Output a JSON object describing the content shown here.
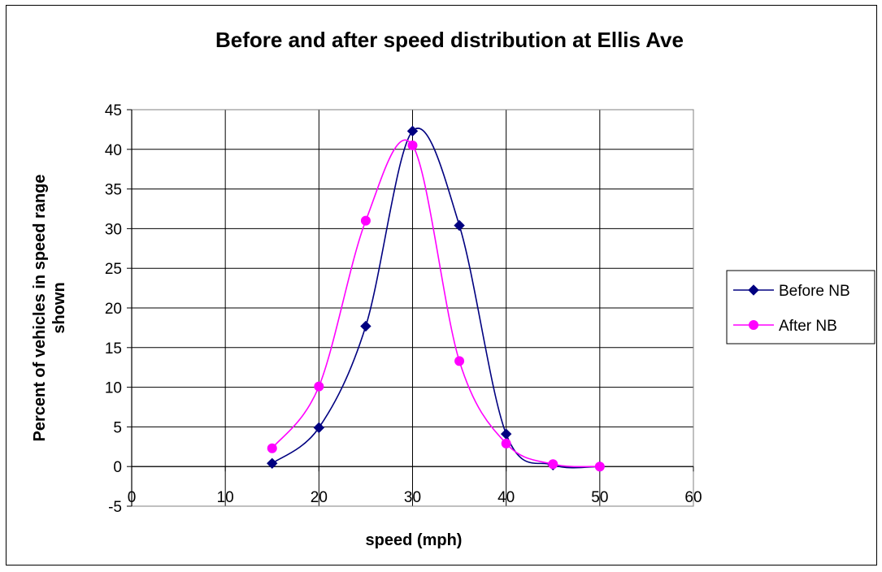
{
  "chart_data": {
    "type": "line",
    "title": "Before and after speed distribution at Ellis Ave",
    "xlabel": "speed (mph)",
    "ylabel_line1": "Percent of vehicles in speed range",
    "ylabel_line2": "shown",
    "xlim": [
      0,
      60
    ],
    "ylim": [
      -5,
      45
    ],
    "x_ticks": [
      0,
      10,
      20,
      30,
      40,
      50,
      60
    ],
    "y_ticks": [
      -5,
      0,
      5,
      10,
      15,
      20,
      25,
      30,
      35,
      40,
      45
    ],
    "grid": true,
    "legend_position": "right",
    "smoothed": true,
    "series": [
      {
        "name": "Before NB",
        "color": "#000080",
        "marker": "diamond",
        "x": [
          15,
          20,
          25,
          30,
          35,
          40,
          45,
          50
        ],
        "values": [
          0.4,
          4.9,
          17.7,
          42.3,
          30.4,
          4.1,
          0.2,
          0.0
        ]
      },
      {
        "name": "After NB",
        "color": "#FF00FF",
        "marker": "circle",
        "x": [
          15,
          20,
          25,
          30,
          35,
          40,
          45,
          50
        ],
        "values": [
          2.3,
          10.1,
          31.0,
          40.5,
          13.3,
          2.9,
          0.3,
          0.0
        ]
      }
    ]
  }
}
